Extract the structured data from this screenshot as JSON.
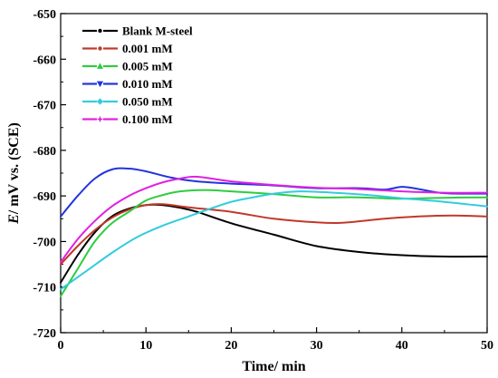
{
  "chart_data": {
    "type": "line",
    "xlabel": "Time/ min",
    "ylabel_italic": "E",
    "ylabel_rest": "/ mV vs. (SCE)",
    "xlim": [
      0,
      50
    ],
    "ylim": [
      -720,
      -650
    ],
    "xticks": [
      0,
      10,
      20,
      30,
      40,
      50
    ],
    "yticks": [
      -720,
      -710,
      -700,
      -690,
      -680,
      -670,
      -660,
      -650
    ],
    "grid": false,
    "legend_position": "top-left",
    "series": [
      {
        "name": "Blank M-steel",
        "color": "#000000",
        "marker": "dash-dot",
        "points": [
          [
            0,
            -709
          ],
          [
            2,
            -703
          ],
          [
            4,
            -698
          ],
          [
            6,
            -694.5
          ],
          [
            8,
            -692.8
          ],
          [
            10,
            -692
          ],
          [
            12,
            -692
          ],
          [
            14,
            -692.6
          ],
          [
            16,
            -693.5
          ],
          [
            20,
            -696
          ],
          [
            25,
            -698.5
          ],
          [
            30,
            -701
          ],
          [
            35,
            -702.3
          ],
          [
            40,
            -703
          ],
          [
            45,
            -703.3
          ],
          [
            50,
            -703.3
          ]
        ]
      },
      {
        "name": "0.001 mM",
        "color": "#c0392b",
        "marker": "dash-dot",
        "points": [
          [
            0,
            -705
          ],
          [
            2,
            -701
          ],
          [
            4,
            -697.5
          ],
          [
            6,
            -694.8
          ],
          [
            8,
            -693
          ],
          [
            10,
            -692
          ],
          [
            12,
            -691.8
          ],
          [
            15,
            -692.5
          ],
          [
            20,
            -693.5
          ],
          [
            25,
            -695
          ],
          [
            30,
            -695.8
          ],
          [
            33,
            -695.9
          ],
          [
            38,
            -695
          ],
          [
            42,
            -694.5
          ],
          [
            46,
            -694.3
          ],
          [
            50,
            -694.5
          ]
        ]
      },
      {
        "name": "0.005 mM",
        "color": "#2ecc40",
        "marker": "triangle",
        "points": [
          [
            0,
            -712
          ],
          [
            2,
            -706
          ],
          [
            4,
            -700
          ],
          [
            6,
            -696
          ],
          [
            8,
            -693.5
          ],
          [
            10,
            -691
          ],
          [
            12,
            -689.8
          ],
          [
            14,
            -689
          ],
          [
            17,
            -688.7
          ],
          [
            20,
            -689
          ],
          [
            25,
            -689.6
          ],
          [
            30,
            -690.3
          ],
          [
            35,
            -690.3
          ],
          [
            40,
            -690.6
          ],
          [
            45,
            -690.4
          ],
          [
            50,
            -690.3
          ]
        ]
      },
      {
        "name": "0.010 mM",
        "color": "#2233dd",
        "marker": "triangle-down",
        "points": [
          [
            0,
            -694.5
          ],
          [
            2,
            -690
          ],
          [
            4,
            -686.2
          ],
          [
            6,
            -684.2
          ],
          [
            8,
            -684
          ],
          [
            10,
            -684.6
          ],
          [
            13,
            -686
          ],
          [
            16,
            -686.8
          ],
          [
            20,
            -687.3
          ],
          [
            25,
            -687.7
          ],
          [
            30,
            -688.3
          ],
          [
            35,
            -688.3
          ],
          [
            38,
            -688.6
          ],
          [
            40,
            -688
          ],
          [
            42,
            -688.5
          ],
          [
            45,
            -689.4
          ],
          [
            50,
            -689.5
          ]
        ]
      },
      {
        "name": "0.050 mM",
        "color": "#33ccdd",
        "marker": "diamond",
        "points": [
          [
            0,
            -710.5
          ],
          [
            3,
            -706.5
          ],
          [
            6,
            -702.5
          ],
          [
            9,
            -699
          ],
          [
            12,
            -696.5
          ],
          [
            15,
            -694.5
          ],
          [
            18,
            -692.5
          ],
          [
            20,
            -691.3
          ],
          [
            22,
            -690.5
          ],
          [
            25,
            -689.5
          ],
          [
            28,
            -689
          ],
          [
            32,
            -689.3
          ],
          [
            36,
            -689.8
          ],
          [
            40,
            -690.5
          ],
          [
            45,
            -691.3
          ],
          [
            50,
            -692.3
          ]
        ]
      },
      {
        "name": "0.100 mM",
        "color": "#e020e0",
        "marker": "star",
        "points": [
          [
            0,
            -704.5
          ],
          [
            2,
            -699.5
          ],
          [
            4,
            -695.5
          ],
          [
            6,
            -692.3
          ],
          [
            8,
            -690
          ],
          [
            10,
            -688.3
          ],
          [
            12,
            -687
          ],
          [
            14,
            -686.2
          ],
          [
            16,
            -685.8
          ],
          [
            20,
            -686.8
          ],
          [
            25,
            -687.6
          ],
          [
            30,
            -688.2
          ],
          [
            35,
            -688.5
          ],
          [
            40,
            -689
          ],
          [
            45,
            -689.3
          ],
          [
            50,
            -689.3
          ]
        ]
      }
    ]
  }
}
